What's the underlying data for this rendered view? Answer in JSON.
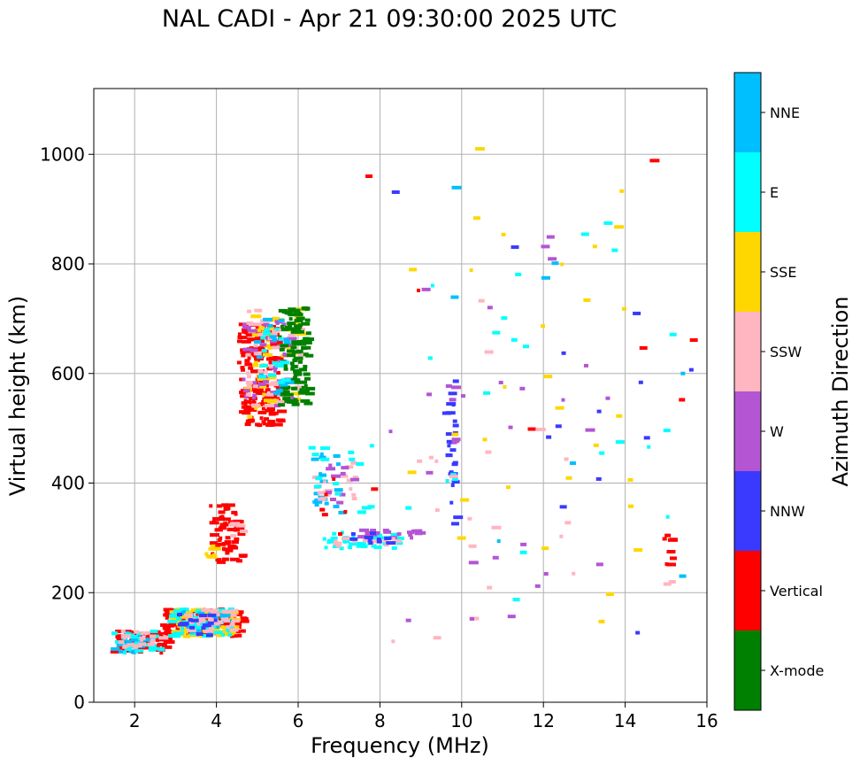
{
  "chart_data": {
    "type": "scatter",
    "title": "NAL CADI - Apr 21 09:30:00 2025 UTC",
    "xlabel": "Frequency (MHz)",
    "ylabel": "Virtual height (km)",
    "xlim": [
      1.0,
      16.0
    ],
    "ylim": [
      0,
      1120
    ],
    "xticks": [
      "2",
      "4",
      "6",
      "8",
      "10",
      "12",
      "14",
      "16"
    ],
    "yticks": [
      "0",
      "200",
      "400",
      "600",
      "800",
      "1000"
    ],
    "grid": true,
    "colorbar": {
      "label": "Azimuth Direction",
      "categories": [
        "X-mode",
        "Vertical",
        "NNW",
        "W",
        "SSW",
        "SSE",
        "E",
        "NNE"
      ],
      "colors": [
        "#008000",
        "#ff0000",
        "#3a3aff",
        "#b455d4",
        "#ffb6c1",
        "#ffd700",
        "#00ffff",
        "#00bfff"
      ]
    },
    "clusters": [
      {
        "cat": "Vertical",
        "x": [
          1.4,
          2.8
        ],
        "y": [
          90,
          130
        ],
        "n": 70
      },
      {
        "cat": "NNE",
        "x": [
          1.4,
          2.4
        ],
        "y": [
          90,
          130
        ],
        "n": 20
      },
      {
        "cat": "E",
        "x": [
          1.4,
          2.6
        ],
        "y": [
          90,
          130
        ],
        "n": 25
      },
      {
        "cat": "SSW",
        "x": [
          1.6,
          2.8
        ],
        "y": [
          100,
          130
        ],
        "n": 20
      },
      {
        "cat": "Vertical",
        "x": [
          2.6,
          4.6
        ],
        "y": [
          120,
          170
        ],
        "n": 120
      },
      {
        "cat": "SSE",
        "x": [
          2.8,
          4.4
        ],
        "y": [
          120,
          170
        ],
        "n": 90
      },
      {
        "cat": "E",
        "x": [
          2.8,
          4.4
        ],
        "y": [
          120,
          170
        ],
        "n": 50
      },
      {
        "cat": "NNE",
        "x": [
          3.0,
          4.2
        ],
        "y": [
          125,
          165
        ],
        "n": 30
      },
      {
        "cat": "SSW",
        "x": [
          3.2,
          4.4
        ],
        "y": [
          130,
          170
        ],
        "n": 35
      },
      {
        "cat": "NNW",
        "x": [
          3.0,
          4.0
        ],
        "y": [
          120,
          160
        ],
        "n": 15
      },
      {
        "cat": "Vertical",
        "x": [
          3.8,
          4.6
        ],
        "y": [
          255,
          360
        ],
        "n": 60
      },
      {
        "cat": "SSE",
        "x": [
          3.7,
          4.0
        ],
        "y": [
          265,
          285
        ],
        "n": 10
      },
      {
        "cat": "SSW",
        "x": [
          4.2,
          4.6
        ],
        "y": [
          300,
          330
        ],
        "n": 6
      },
      {
        "cat": "Vertical",
        "x": [
          4.5,
          5.5
        ],
        "y": [
          505,
          690
        ],
        "n": 170
      },
      {
        "cat": "SSE",
        "x": [
          4.6,
          6.0
        ],
        "y": [
          520,
          720
        ],
        "n": 60
      },
      {
        "cat": "W",
        "x": [
          4.6,
          5.8
        ],
        "y": [
          540,
          700
        ],
        "n": 45
      },
      {
        "cat": "SSW",
        "x": [
          4.7,
          6.0
        ],
        "y": [
          540,
          720
        ],
        "n": 40
      },
      {
        "cat": "X-mode",
        "x": [
          5.5,
          6.2
        ],
        "y": [
          540,
          720
        ],
        "n": 110
      },
      {
        "cat": "NNE",
        "x": [
          4.8,
          5.8
        ],
        "y": [
          560,
          700
        ],
        "n": 15
      },
      {
        "cat": "E",
        "x": [
          5.0,
          5.8
        ],
        "y": [
          580,
          690
        ],
        "n": 15
      },
      {
        "cat": "E",
        "x": [
          6.6,
          8.6
        ],
        "y": [
          280,
          310
        ],
        "n": 40
      },
      {
        "cat": "W",
        "x": [
          7.4,
          9.0
        ],
        "y": [
          300,
          315
        ],
        "n": 20
      },
      {
        "cat": "SSW",
        "x": [
          6.8,
          8.4
        ],
        "y": [
          280,
          300
        ],
        "n": 15
      },
      {
        "cat": "NNW",
        "x": [
          7.2,
          8.2
        ],
        "y": [
          290,
          310
        ],
        "n": 10
      },
      {
        "cat": "NNE",
        "x": [
          6.3,
          7.0
        ],
        "y": [
          340,
          470
        ],
        "n": 20
      },
      {
        "cat": "SSW",
        "x": [
          6.3,
          7.5
        ],
        "y": [
          360,
          440
        ],
        "n": 20
      },
      {
        "cat": "W",
        "x": [
          6.3,
          7.5
        ],
        "y": [
          360,
          440
        ],
        "n": 10
      },
      {
        "cat": "E",
        "x": [
          6.2,
          7.8
        ],
        "y": [
          340,
          470
        ],
        "n": 15
      },
      {
        "cat": "Vertical",
        "x": [
          6.2,
          7.6
        ],
        "y": [
          280,
          440
        ],
        "n": 6
      },
      {
        "cat": "NNW",
        "x": [
          9.6,
          9.8
        ],
        "y": [
          330,
          590
        ],
        "n": 25
      },
      {
        "cat": "W",
        "x": [
          9.6,
          9.8
        ],
        "y": [
          440,
          580
        ],
        "n": 6
      },
      {
        "cat": "E",
        "x": [
          9.6,
          9.8
        ],
        "y": [
          400,
          420
        ],
        "n": 3
      },
      {
        "cat": "SSW",
        "x": [
          8.2,
          12.8
        ],
        "y": [
          100,
          740
        ],
        "n": 20
      },
      {
        "cat": "W",
        "x": [
          8.2,
          13.8
        ],
        "y": [
          100,
          890
        ],
        "n": 25
      },
      {
        "cat": "SSE",
        "x": [
          8.6,
          14.4
        ],
        "y": [
          90,
          1010
        ],
        "n": 30
      },
      {
        "cat": "E",
        "x": [
          8.2,
          15.4
        ],
        "y": [
          180,
          930
        ],
        "n": 20
      },
      {
        "cat": "NNW",
        "x": [
          8.2,
          15.9
        ],
        "y": [
          90,
          990
        ],
        "n": 15
      },
      {
        "cat": "Vertical",
        "x": [
          7.2,
          15.9
        ],
        "y": [
          90,
          990
        ],
        "n": 8
      },
      {
        "cat": "NNE",
        "x": [
          7.2,
          15.4
        ],
        "y": [
          100,
          990
        ],
        "n": 8
      },
      {
        "cat": "Vertical",
        "x": [
          14.9,
          15.1
        ],
        "y": [
          250,
          305
        ],
        "n": 8
      },
      {
        "cat": "SSW",
        "x": [
          14.9,
          15.1
        ],
        "y": [
          215,
          220
        ],
        "n": 2
      }
    ]
  }
}
